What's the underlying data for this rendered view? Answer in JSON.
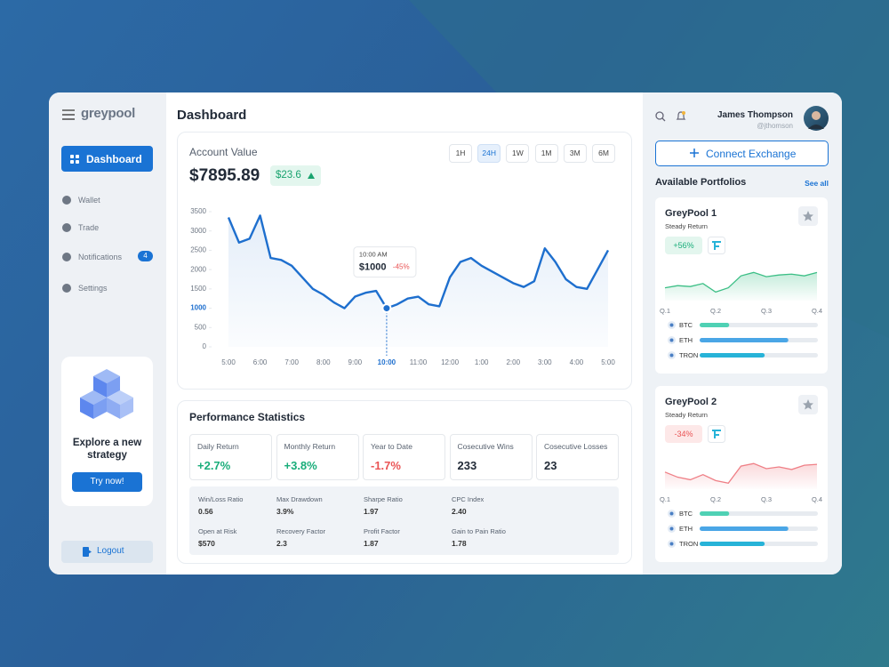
{
  "sidebar": {
    "brand": "greypool",
    "nav": [
      "Dashboard",
      "Wallet",
      "Trade",
      "Notifications",
      "Settings"
    ],
    "notification_count": 4,
    "promo": {
      "title": "Explore a new strategy",
      "button": "Try now!"
    },
    "logout": "Logout"
  },
  "header": {
    "title": "Dashboard"
  },
  "account": {
    "label": "Account Value",
    "value": "$7895.89",
    "change": "$23.6",
    "ranges": [
      "1H",
      "24H",
      "1W",
      "1M",
      "3M",
      "6M"
    ],
    "active_range": "24H"
  },
  "tooltip": {
    "time": "10:00 AM",
    "value": "$1000",
    "change": "-45%"
  },
  "chart_data": [
    {
      "type": "line",
      "categories": [
        "5:00",
        null,
        null,
        "6:00",
        null,
        null,
        "7:00",
        null,
        null,
        "8:00",
        null,
        null,
        "9:00",
        null,
        null,
        "10:00",
        null,
        null,
        "11:00",
        null,
        null,
        "12:00",
        null,
        null,
        "1:00",
        null,
        null,
        "2:00",
        null,
        null,
        "3:00",
        null,
        null,
        "4:00",
        null,
        null,
        "5:00"
      ],
      "values": [
        3350,
        2700,
        2800,
        3400,
        2300,
        2250,
        2100,
        1800,
        1500,
        1350,
        1150,
        1000,
        1300,
        1400,
        1450,
        1000,
        1100,
        1250,
        1300,
        1100,
        1050,
        1800,
        2200,
        2300,
        2100,
        1950,
        1800,
        1650,
        1550,
        1700,
        2550,
        2200,
        1750,
        1550,
        1500,
        2000,
        2500
      ],
      "color": "#1e6fce",
      "ylim": [
        0,
        3500
      ],
      "yticks": [
        0,
        500,
        1000,
        1500,
        2000,
        2500,
        3000,
        3500
      ],
      "hover_index": 15
    },
    {
      "type": "line",
      "categories": [
        "Q.1",
        null,
        null,
        null,
        "Q.2",
        null,
        null,
        null,
        "Q.3",
        null,
        null,
        null,
        "Q.4"
      ],
      "values": [
        30,
        35,
        33,
        40,
        20,
        30,
        58,
        66,
        56,
        60,
        62,
        58,
        66
      ],
      "color": "#3cbf86",
      "ylim": [
        0,
        100
      ]
    },
    {
      "type": "line",
      "categories": [
        "Q.1",
        null,
        null,
        null,
        "Q.2",
        null,
        null,
        null,
        "Q.3",
        null,
        null,
        null,
        "Q.4"
      ],
      "values": [
        40,
        28,
        22,
        34,
        20,
        14,
        54,
        60,
        48,
        52,
        46,
        56,
        58
      ],
      "color": "#ef7f86",
      "ylim": [
        0,
        100
      ]
    }
  ],
  "performance": {
    "title": "Performance Statistics",
    "cards": [
      {
        "label": "Daily Return",
        "value": "+2.7%",
        "color": "#19ad7a"
      },
      {
        "label": "Monthly Return",
        "value": "+3.8%",
        "color": "#19ad7a"
      },
      {
        "label": "Year to Date",
        "value": "-1.7%",
        "color": "#ea5455"
      },
      {
        "label": "Cosecutive Wins",
        "value": "233",
        "color": "#222b38"
      },
      {
        "label": "Cosecutive Losses",
        "value": "23",
        "color": "#222b38"
      }
    ],
    "details": [
      {
        "label": "Win/Loss Ratio",
        "value": "0.56"
      },
      {
        "label": "Max Drawdown",
        "value": "3.9%"
      },
      {
        "label": "Sharpe Ratio",
        "value": "1.97"
      },
      {
        "label": "CPC Index",
        "value": "2.40"
      },
      {
        "label": "Open at Risk",
        "value": "$570"
      },
      {
        "label": "Recovery Factor",
        "value": "2.3"
      },
      {
        "label": "Profit Factor",
        "value": "1.87"
      },
      {
        "label": "Gain to Pain Ratio",
        "value": "1.78"
      }
    ]
  },
  "user": {
    "name": "James Thompson",
    "handle": "@jthomson"
  },
  "connect": "Connect Exchange",
  "portfolios_header": {
    "title": "Available Portfolios",
    "link": "See all"
  },
  "portfolios": [
    {
      "name": "GreyPool 1",
      "subtitle": "Steady Return",
      "change": "+56%",
      "positive": true,
      "assets": [
        {
          "name": "BTC",
          "share": 25,
          "color": "#4fd1b4"
        },
        {
          "name": "ETH",
          "share": 75,
          "color": "#4aa6e6"
        },
        {
          "name": "TRON",
          "share": 55,
          "color": "#27b3d8"
        }
      ]
    },
    {
      "name": "GreyPool 2",
      "subtitle": "Steady Return",
      "change": "-34%",
      "positive": false,
      "assets": [
        {
          "name": "BTC",
          "share": 25,
          "color": "#4fd1b4"
        },
        {
          "name": "ETH",
          "share": 75,
          "color": "#4aa6e6"
        },
        {
          "name": "TRON",
          "share": 55,
          "color": "#27b3d8"
        }
      ]
    }
  ]
}
